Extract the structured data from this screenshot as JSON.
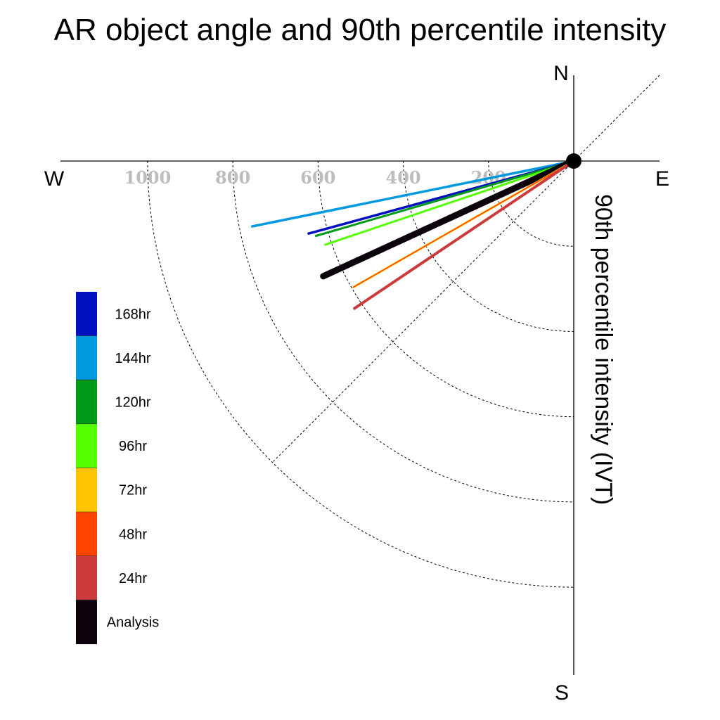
{
  "chart_data": {
    "type": "polar-vector",
    "title": "AR object angle and 90th percentile intensity",
    "ylabel": "90th percentile intensity (IVT)",
    "directions": {
      "north": "N",
      "south": "S",
      "west": "W",
      "east": "E"
    },
    "radial_ticks": [
      {
        "value": 200,
        "label": "200"
      },
      {
        "value": 400,
        "label": "400"
      },
      {
        "value": 600,
        "label": "600"
      },
      {
        "value": 800,
        "label": "800"
      },
      {
        "value": 1000,
        "label": "1000"
      }
    ],
    "radial_range": [
      0,
      1000
    ],
    "grid_diagonal": true,
    "series": [
      {
        "name": "144hr",
        "color": "#0099dd",
        "angle_deg": 191.5,
        "intensity": 770,
        "linewidth": 3.5
      },
      {
        "name": "168hr",
        "color": "#0010c0",
        "angle_deg": 195.3,
        "intensity": 645,
        "linewidth": 3.5
      },
      {
        "name": "120hr",
        "color": "#009a1a",
        "angle_deg": 196.2,
        "intensity": 630,
        "linewidth": 3
      },
      {
        "name": "96hr",
        "color": "#55ff00",
        "angle_deg": 198.6,
        "intensity": 615,
        "linewidth": 3
      },
      {
        "name": "Analysis",
        "color": "#0c030d",
        "angle_deg": 204.7,
        "intensity": 647,
        "linewidth": 9
      },
      {
        "name": "72hr",
        "color": "#ffc400",
        "angle_deg": 209.8,
        "intensity": 596,
        "linewidth": 3
      },
      {
        "name": "48hr",
        "color": "#ff4400",
        "angle_deg": 209.8,
        "intensity": 596,
        "linewidth": 1.5
      },
      {
        "name": "24hr",
        "color": "#cc3b3b",
        "angle_deg": 213.9,
        "intensity": 620,
        "linewidth": 4
      }
    ],
    "legend": {
      "placement": "left",
      "entries": [
        {
          "label": "168hr",
          "color": "#0010c0"
        },
        {
          "label": "144hr",
          "color": "#0099dd"
        },
        {
          "label": "120hr",
          "color": "#009a1a"
        },
        {
          "label": "96hr",
          "color": "#55ff00"
        },
        {
          "label": "72hr",
          "color": "#ffc400"
        },
        {
          "label": "48hr",
          "color": "#ff4400"
        },
        {
          "label": "24hr",
          "color": "#cc3b3b"
        },
        {
          "label": "Analysis",
          "color": "#0c030d"
        }
      ]
    }
  }
}
